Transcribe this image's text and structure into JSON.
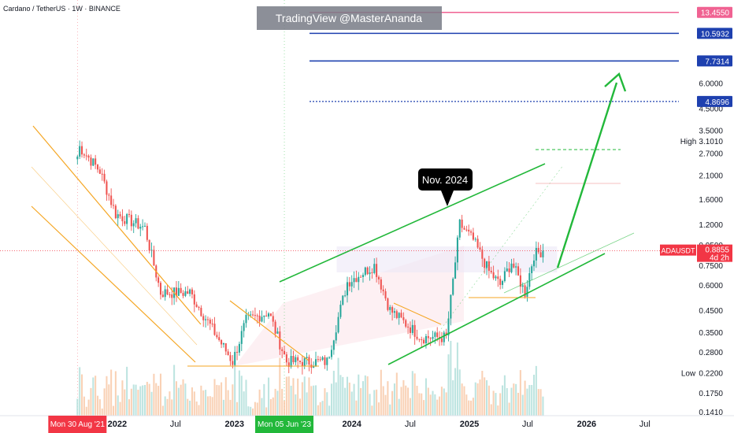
{
  "header": {
    "symbol_line": "Cardano / TetherUS · 1W · BINANCE",
    "watermark": "TradingView @MasterAnanda"
  },
  "colors": {
    "up": "#26a69a",
    "down": "#ef5350",
    "channel_orange": "#f5a623",
    "channel_green": "#22b83a",
    "target_blue": "#1e40af",
    "target_pink": "#f06292",
    "price_red": "#f23645",
    "shade_pink": "#fce4ea",
    "shade_lavender": "#ede7f6"
  },
  "callout": {
    "label": "Nov. 2024"
  },
  "price_tag": {
    "symbol": "ADAUSDT",
    "price": "0.8855",
    "countdown": "4d 2h"
  },
  "high_label": {
    "label": "High",
    "value": "3.1010"
  },
  "low_label": {
    "label": "Low",
    "value": "0.2200"
  },
  "x_axis": {
    "labels": [
      "2022",
      "Jul",
      "2023",
      "Jul",
      "2024",
      "Jul",
      "2025",
      "Jul",
      "2026",
      "Jul"
    ],
    "highlights": [
      {
        "label": "Mon 30 Aug '21",
        "color": "#f23645"
      },
      {
        "label": "Mon 05 Jun '23",
        "color": "#22b83a"
      }
    ]
  },
  "chart_data": {
    "type": "candlestick",
    "title": "Cardano / TetherUS · 1W · BINANCE",
    "y_scale": "log",
    "ylim": [
      0.135,
      15.5
    ],
    "y_ticks": [
      "6.0000",
      "4.5000",
      "3.5000",
      "2.7000",
      "2.1000",
      "1.6000",
      "1.2000",
      "0.9500",
      "0.7500",
      "0.6000",
      "0.4500",
      "0.3500",
      "0.2800",
      "0.1750",
      "0.1410"
    ],
    "target_levels": [
      {
        "value": "13.4550",
        "style": "solid",
        "color": "#f06292"
      },
      {
        "value": "10.5932",
        "style": "solid",
        "color": "#1e40af"
      },
      {
        "value": "7.7314",
        "style": "solid",
        "color": "#1e40af"
      },
      {
        "value": "4.8696",
        "style": "dotted",
        "color": "#1e40af"
      }
    ],
    "anchors": [
      {
        "date": "2021-08-30",
        "price": 2.6
      },
      {
        "date": "2021-09-06",
        "price": 2.9
      },
      {
        "date": "2021-11-08",
        "price": 2.2
      },
      {
        "date": "2021-12-27",
        "price": 1.35
      },
      {
        "date": "2022-03-28",
        "price": 1.15
      },
      {
        "date": "2022-05-16",
        "price": 0.55
      },
      {
        "date": "2022-08-15",
        "price": 0.55
      },
      {
        "date": "2022-11-14",
        "price": 0.32
      },
      {
        "date": "2022-12-26",
        "price": 0.25
      },
      {
        "date": "2023-02-06",
        "price": 0.4
      },
      {
        "date": "2023-04-17",
        "price": 0.44
      },
      {
        "date": "2023-06-12",
        "price": 0.25
      },
      {
        "date": "2023-10-16",
        "price": 0.25
      },
      {
        "date": "2023-12-18",
        "price": 0.62
      },
      {
        "date": "2024-03-11",
        "price": 0.75
      },
      {
        "date": "2024-04-29",
        "price": 0.45
      },
      {
        "date": "2024-08-05",
        "price": 0.33
      },
      {
        "date": "2024-10-21",
        "price": 0.33
      },
      {
        "date": "2024-12-02",
        "price": 1.2
      },
      {
        "date": "2025-01-13",
        "price": 1.0
      },
      {
        "date": "2025-03-03",
        "price": 0.7
      },
      {
        "date": "2025-04-07",
        "price": 0.6
      },
      {
        "date": "2025-05-12",
        "price": 0.78
      },
      {
        "date": "2025-06-23",
        "price": 0.55
      },
      {
        "date": "2025-07-21",
        "price": 0.85
      },
      {
        "date": "2025-08-18",
        "price": 0.89
      }
    ]
  }
}
